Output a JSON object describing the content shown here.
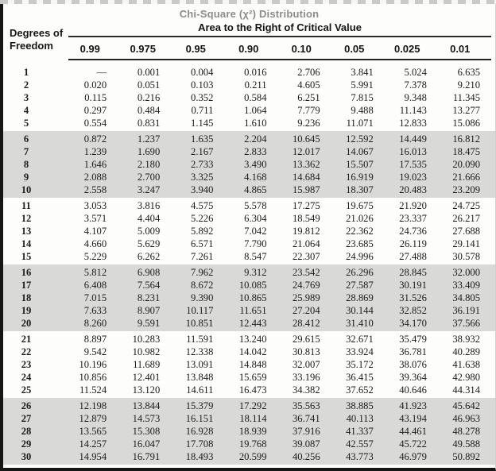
{
  "table": {
    "title": "Chi-Square (χ²) Distribution",
    "subtitle": "Area to the Right of Critical Value",
    "row_header_line1": "Degrees of",
    "row_header_line2": "Freedom",
    "columns": [
      "0.99",
      "0.975",
      "0.95",
      "0.90",
      "0.10",
      "0.05",
      "0.025",
      "0.01"
    ],
    "rows": [
      {
        "df": "1",
        "values": [
          "—",
          "0.001",
          "0.004",
          "0.016",
          "2.706",
          "3.841",
          "5.024",
          "6.635"
        ]
      },
      {
        "df": "2",
        "values": [
          "0.020",
          "0.051",
          "0.103",
          "0.211",
          "4.605",
          "5.991",
          "7.378",
          "9.210"
        ]
      },
      {
        "df": "3",
        "values": [
          "0.115",
          "0.216",
          "0.352",
          "0.584",
          "6.251",
          "7.815",
          "9.348",
          "11.345"
        ]
      },
      {
        "df": "4",
        "values": [
          "0.297",
          "0.484",
          "0.711",
          "1.064",
          "7.779",
          "9.488",
          "11.143",
          "13.277"
        ]
      },
      {
        "df": "5",
        "values": [
          "0.554",
          "0.831",
          "1.145",
          "1.610",
          "9.236",
          "11.071",
          "12.833",
          "15.086"
        ]
      },
      {
        "df": "6",
        "values": [
          "0.872",
          "1.237",
          "1.635",
          "2.204",
          "10.645",
          "12.592",
          "14.449",
          "16.812"
        ]
      },
      {
        "df": "7",
        "values": [
          "1.239",
          "1.690",
          "2.167",
          "2.833",
          "12.017",
          "14.067",
          "16.013",
          "18.475"
        ]
      },
      {
        "df": "8",
        "values": [
          "1.646",
          "2.180",
          "2.733",
          "3.490",
          "13.362",
          "15.507",
          "17.535",
          "20.090"
        ]
      },
      {
        "df": "9",
        "values": [
          "2.088",
          "2.700",
          "3.325",
          "4.168",
          "14.684",
          "16.919",
          "19.023",
          "21.666"
        ]
      },
      {
        "df": "10",
        "values": [
          "2.558",
          "3.247",
          "3.940",
          "4.865",
          "15.987",
          "18.307",
          "20.483",
          "23.209"
        ]
      },
      {
        "df": "11",
        "values": [
          "3.053",
          "3.816",
          "4.575",
          "5.578",
          "17.275",
          "19.675",
          "21.920",
          "24.725"
        ]
      },
      {
        "df": "12",
        "values": [
          "3.571",
          "4.404",
          "5.226",
          "6.304",
          "18.549",
          "21.026",
          "23.337",
          "26.217"
        ]
      },
      {
        "df": "13",
        "values": [
          "4.107",
          "5.009",
          "5.892",
          "7.042",
          "19.812",
          "22.362",
          "24.736",
          "27.688"
        ]
      },
      {
        "df": "14",
        "values": [
          "4.660",
          "5.629",
          "6.571",
          "7.790",
          "21.064",
          "23.685",
          "26.119",
          "29.141"
        ]
      },
      {
        "df": "15",
        "values": [
          "5.229",
          "6.262",
          "7.261",
          "8.547",
          "22.307",
          "24.996",
          "27.488",
          "30.578"
        ]
      },
      {
        "df": "16",
        "values": [
          "5.812",
          "6.908",
          "7.962",
          "9.312",
          "23.542",
          "26.296",
          "28.845",
          "32.000"
        ]
      },
      {
        "df": "17",
        "values": [
          "6.408",
          "7.564",
          "8.672",
          "10.085",
          "24.769",
          "27.587",
          "30.191",
          "33.409"
        ]
      },
      {
        "df": "18",
        "values": [
          "7.015",
          "8.231",
          "9.390",
          "10.865",
          "25.989",
          "28.869",
          "31.526",
          "34.805"
        ]
      },
      {
        "df": "19",
        "values": [
          "7.633",
          "8.907",
          "10.117",
          "11.651",
          "27.204",
          "30.144",
          "32.852",
          "36.191"
        ]
      },
      {
        "df": "20",
        "values": [
          "8.260",
          "9.591",
          "10.851",
          "12.443",
          "28.412",
          "31.410",
          "34.170",
          "37.566"
        ]
      },
      {
        "df": "21",
        "values": [
          "8.897",
          "10.283",
          "11.591",
          "13.240",
          "29.615",
          "32.671",
          "35.479",
          "38.932"
        ]
      },
      {
        "df": "22",
        "values": [
          "9.542",
          "10.982",
          "12.338",
          "14.042",
          "30.813",
          "33.924",
          "36.781",
          "40.289"
        ]
      },
      {
        "df": "23",
        "values": [
          "10.196",
          "11.689",
          "13.091",
          "14.848",
          "32.007",
          "35.172",
          "38.076",
          "41.638"
        ]
      },
      {
        "df": "24",
        "values": [
          "10.856",
          "12.401",
          "13.848",
          "15.659",
          "33.196",
          "36.415",
          "39.364",
          "42.980"
        ]
      },
      {
        "df": "25",
        "values": [
          "11.524",
          "13.120",
          "14.611",
          "16.473",
          "34.382",
          "37.652",
          "40.646",
          "44.314"
        ]
      },
      {
        "df": "26",
        "values": [
          "12.198",
          "13.844",
          "15.379",
          "17.292",
          "35.563",
          "38.885",
          "41.923",
          "45.642"
        ]
      },
      {
        "df": "27",
        "values": [
          "12.879",
          "14.573",
          "16.151",
          "18.114",
          "36.741",
          "40.113",
          "43.194",
          "46.963"
        ]
      },
      {
        "df": "28",
        "values": [
          "13.565",
          "15.308",
          "16.928",
          "18.939",
          "37.916",
          "41.337",
          "44.461",
          "48.278"
        ]
      },
      {
        "df": "29",
        "values": [
          "14.257",
          "16.047",
          "17.708",
          "19.768",
          "39.087",
          "42.557",
          "45.722",
          "49.588"
        ]
      },
      {
        "df": "30",
        "values": [
          "14.954",
          "16.791",
          "18.493",
          "20.599",
          "40.256",
          "43.773",
          "46.979",
          "50.892"
        ]
      }
    ],
    "rows_per_band": 5
  },
  "colors": {
    "shaded_band": "#d9d9d8",
    "title_gray": "#8c8c8c",
    "frame_dark": "#161616"
  }
}
